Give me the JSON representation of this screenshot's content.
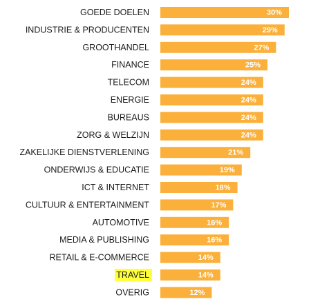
{
  "chart_data": {
    "type": "bar",
    "orientation": "horizontal",
    "categories": [
      "GOEDE DOELEN",
      "INDUSTRIE & PRODUCENTEN",
      "GROOTHANDEL",
      "FINANCE",
      "TELECOM",
      "ENERGIE",
      "BUREAUS",
      "ZORG & WELZIJN",
      "ZAKELIJKE DIENSTVERLENING",
      "ONDERWIJS & EDUCATIE",
      "ICT & INTERNET",
      "CULTUUR & ENTERTAINMENT",
      "AUTOMOTIVE",
      "MEDIA & PUBLISHING",
      "RETAIL & E-COMMERCE",
      "TRAVEL",
      "OVERIG"
    ],
    "values": [
      30,
      29,
      27,
      25,
      24,
      24,
      24,
      24,
      21,
      19,
      18,
      17,
      16,
      16,
      14,
      14,
      12
    ],
    "value_labels": [
      "30%",
      "29%",
      "27%",
      "25%",
      "24%",
      "24%",
      "24%",
      "24%",
      "21%",
      "19%",
      "18%",
      "17%",
      "16%",
      "16%",
      "14%",
      "14%",
      "12%"
    ],
    "highlighted_category": "TRAVEL",
    "title": "",
    "xlabel": "",
    "ylabel": "",
    "xlim": [
      0,
      30
    ],
    "grid": false,
    "legend": "none",
    "colors": {
      "bar": "#FBB03B",
      "value_text": "#FFFFFF",
      "category_text": "#1A1A1A",
      "highlight": "#FFFF3C"
    }
  }
}
